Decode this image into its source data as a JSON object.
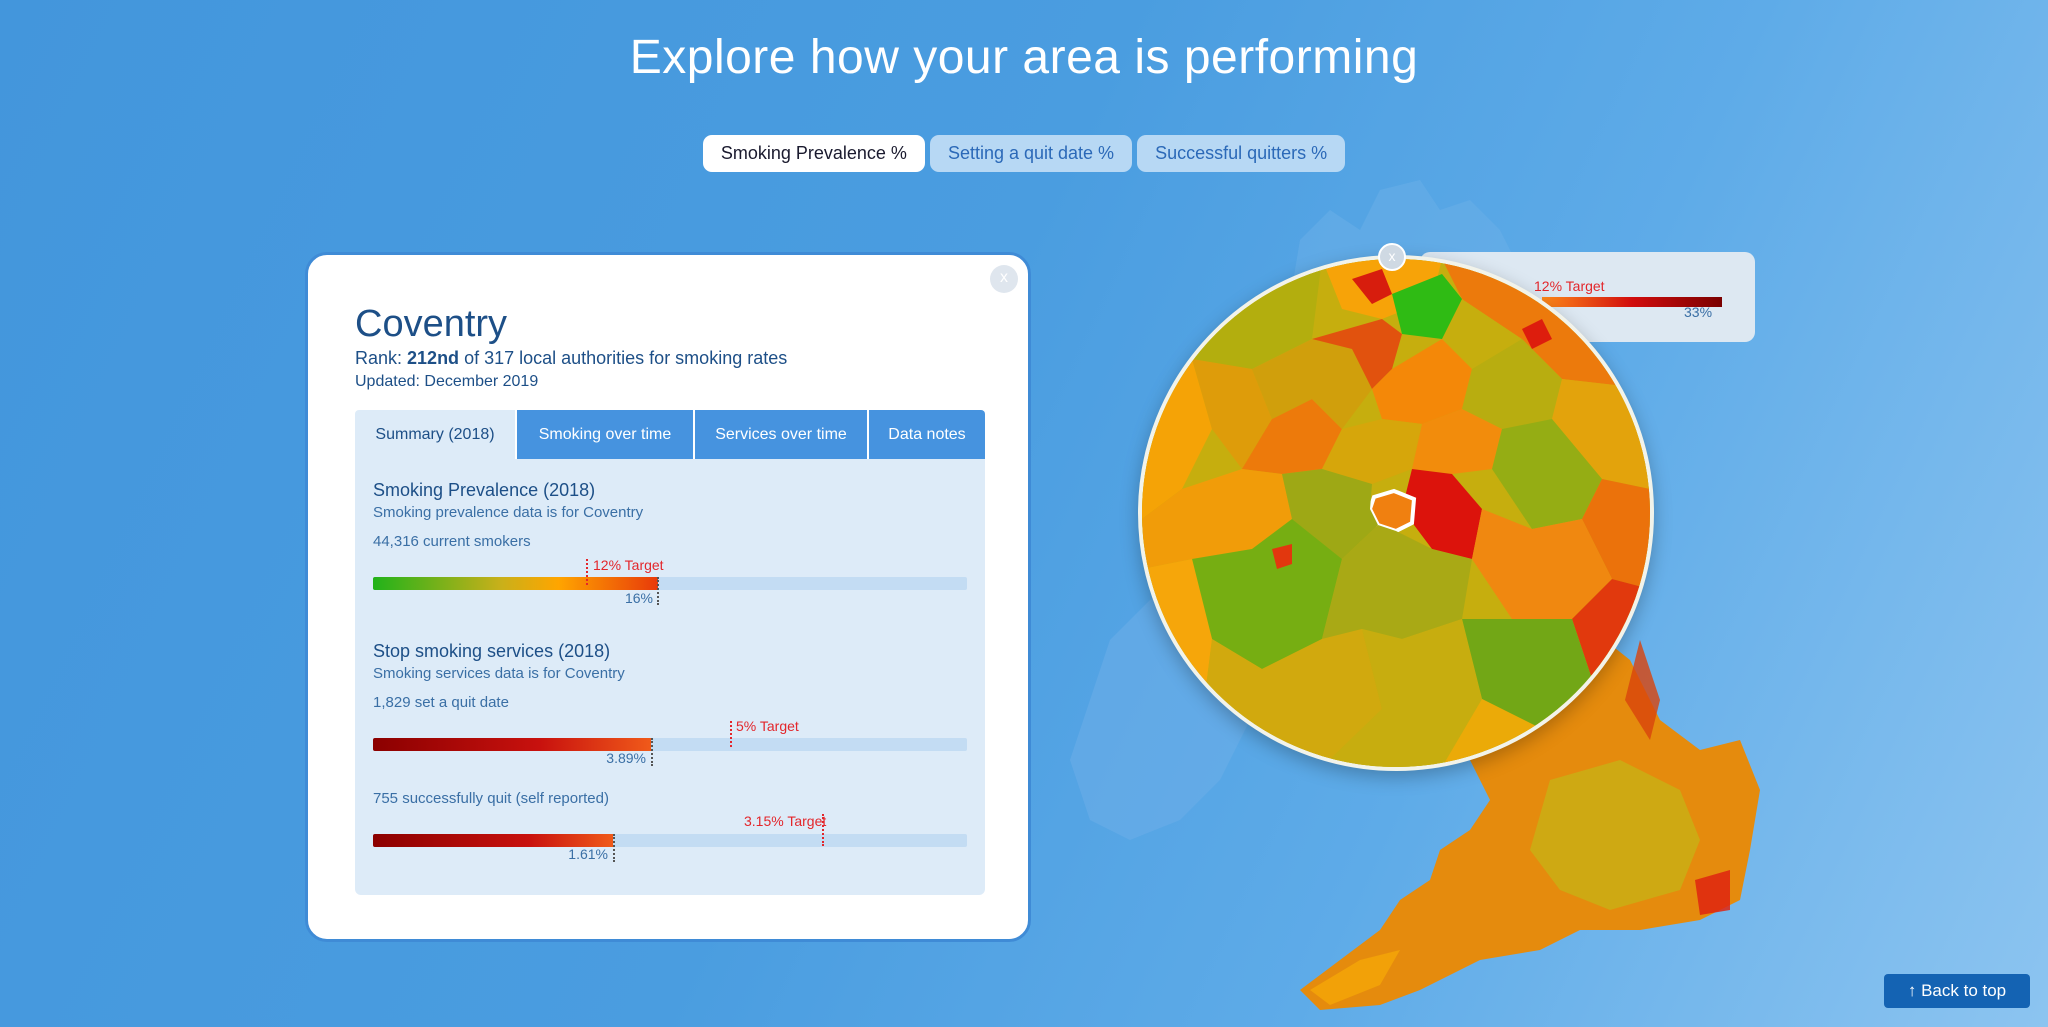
{
  "header": {
    "title": "Explore how your area is performing"
  },
  "metric_tabs": [
    {
      "label": "Smoking Prevalence %",
      "active": true
    },
    {
      "label": "Setting a quit date %",
      "active": false
    },
    {
      "label": "Successful quitters %",
      "active": false
    }
  ],
  "card": {
    "close_label": "x",
    "area_name": "Coventry",
    "rank_prefix": "Rank: ",
    "rank_value": "212nd",
    "rank_suffix": " of 317 local authorities for smoking rates",
    "updated": "Updated: December 2019",
    "tabs": [
      {
        "label": "Summary (2018)",
        "active": true
      },
      {
        "label": "Smoking over time",
        "active": false
      },
      {
        "label": "Services over time",
        "active": false
      },
      {
        "label": "Data notes",
        "active": false
      }
    ],
    "prevalence": {
      "title": "Smoking Prevalence (2018)",
      "subtitle": "Smoking prevalence data is for Coventry",
      "count": "44,316 current smokers",
      "value_label": "16%",
      "value": 16,
      "target_label": "12% Target",
      "target": 12
    },
    "services": {
      "title": "Stop smoking services (2018)",
      "subtitle": "Smoking services data is for Coventry",
      "quit_date": {
        "count": "1,829 set a quit date",
        "value_label": "3.89%",
        "value": 3.89,
        "target_label": "5% Target",
        "target": 5
      },
      "quit_success": {
        "count": "755 successfully quit (self reported)",
        "value_label": "1.61%",
        "value": 1.61,
        "target_label": "3.15% Target",
        "target": 3.15
      }
    }
  },
  "map_tooltip": {
    "close_label": "x",
    "target_label": "12% Target",
    "value_label": "33%"
  },
  "back_to_top": {
    "label": "Back to top",
    "icon": "arrow-up-icon"
  },
  "colors": {
    "accent": "#4693df",
    "target": "#e3262b",
    "prevalence_gradient": [
      "#21b21a",
      "#ffa500",
      "#e83a0a"
    ],
    "services_gradient": [
      "#8b0000",
      "#f05a1a"
    ]
  }
}
